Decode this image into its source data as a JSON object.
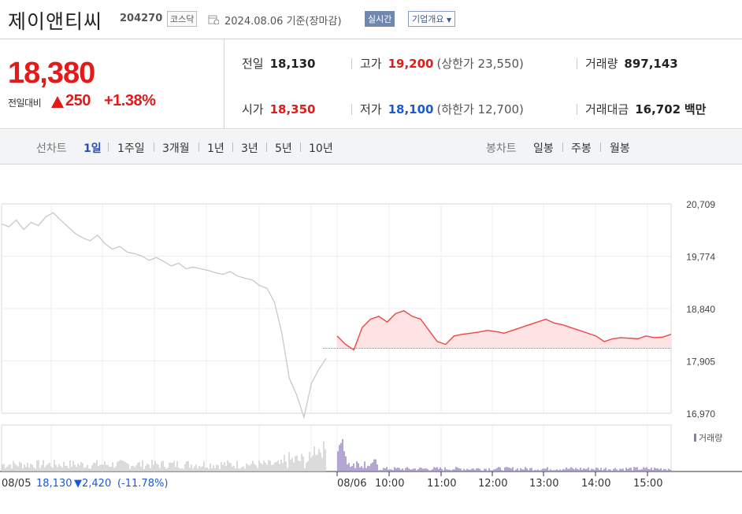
{
  "header": {
    "name": "제이앤티씨",
    "code": "204270",
    "market": "코스닥",
    "date": "2024.08.06",
    "basis": "기준(장마감)",
    "realtime": "실시간",
    "company": "기업개요"
  },
  "price": {
    "current": "18,380",
    "compare_label": "전일대비",
    "change": "250",
    "change_pct": "+1.38%",
    "up_color": "#e31a1a",
    "down_color": "#1a5ad6"
  },
  "stats": {
    "prev_label": "전일",
    "prev": "18,130",
    "high_label": "고가",
    "high": "19,200",
    "upper_label": "(상한가",
    "upper": "23,550)",
    "volume_label": "거래량",
    "volume": "897,143",
    "open_label": "시가",
    "open": "18,350",
    "low_label": "저가",
    "low": "18,100",
    "lower_label": "(하한가",
    "lower": "12,700)",
    "amount_label": "거래대금",
    "amount": "16,702",
    "amount_unit": "백만"
  },
  "periods": {
    "line_label": "선차트",
    "line": [
      "1일",
      "1주일",
      "3개월",
      "1년",
      "3년",
      "5년",
      "10년"
    ],
    "candle_label": "봉차트",
    "candle": [
      "일봉",
      "주봉",
      "월봉"
    ],
    "active": "1일"
  },
  "chart_data": {
    "type": "line",
    "y_ticks": [
      "20,709",
      "19,774",
      "18,840",
      "17,905",
      "16,970"
    ],
    "ylim": [
      16970,
      20709
    ],
    "prev_close": 18130,
    "x_ticks": [
      "08/06",
      "10:00",
      "11:00",
      "12:00",
      "13:00",
      "14:00",
      "15:00"
    ],
    "volume_legend": "거래량",
    "prev_day": {
      "date": "08/05",
      "close": "18,130",
      "change": "▼2,420",
      "change_pct": "(-11.78%)"
    },
    "series": [
      {
        "values": [
          20350,
          20300,
          20420,
          20250,
          20380,
          20320,
          20480,
          20550,
          20420,
          20300,
          20180,
          20100,
          20050,
          20150,
          20000,
          19900,
          19950,
          19850,
          19820,
          19780,
          19700,
          19750,
          19680,
          19600,
          19650,
          19550,
          19580,
          19550,
          19520,
          19480,
          19450,
          19500,
          19420,
          19380,
          19350,
          19250,
          19200,
          18950,
          18400,
          17600,
          17300,
          16900,
          17500,
          17750,
          17950
        ]
      },
      {
        "values": [
          18350,
          18200,
          18100,
          18500,
          18650,
          18700,
          18600,
          18750,
          18800,
          18700,
          18650,
          18450,
          18250,
          18200,
          18350,
          18380,
          18400,
          18420,
          18450,
          18430,
          18400,
          18450,
          18500,
          18550,
          18600,
          18650,
          18580,
          18550,
          18500,
          18450,
          18400,
          18350,
          18250,
          18300,
          18320,
          18310,
          18300,
          18350,
          18320,
          18330,
          18380
        ]
      }
    ]
  }
}
